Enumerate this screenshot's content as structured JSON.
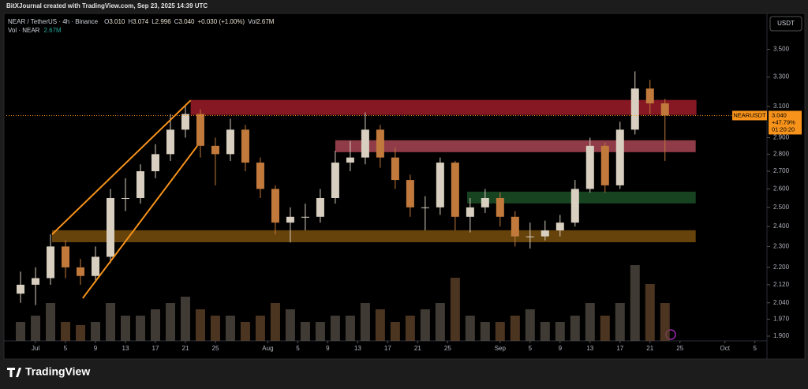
{
  "header": {
    "caption": "BitXJournal created with TradingView.com, Sep 23, 2025 14:39 UTC",
    "symbol": "NEAR / TetherUS · 4h · Binance",
    "ohlc": [
      {
        "prefix": "O",
        "value": "3.010"
      },
      {
        "prefix": "H",
        "value": "3.074"
      },
      {
        "prefix": "L",
        "value": "2.996"
      },
      {
        "prefix": "C",
        "value": "3.040"
      }
    ],
    "change": "+0.030 (+1.00%)",
    "volume_prefix": "Vol",
    "volume": "2.67M",
    "volume_study": "Vol · NEAR",
    "volume_study_value": "2.67M"
  },
  "footer": {
    "brand": "TradingView"
  },
  "chart_data": {
    "type": "candlestick",
    "log_scale": true,
    "grid": false,
    "currency": "USDT",
    "up_color": "#d8cfc0",
    "down_color": "#c27a3c",
    "volume_color": "#6b4a2e",
    "xlim": [
      -3.9,
      97.4
    ],
    "ylim": [
      1.881,
      3.76
    ],
    "volume_lim": [
      0,
      15
    ],
    "xticks": [
      {
        "value": 0,
        "label": "Jul"
      },
      {
        "value": 4,
        "label": "5"
      },
      {
        "value": 8,
        "label": "9"
      },
      {
        "value": 12,
        "label": "13"
      },
      {
        "value": 16,
        "label": "17"
      },
      {
        "value": 20,
        "label": "21"
      },
      {
        "value": 24,
        "label": "25"
      },
      {
        "value": 31,
        "label": "Aug"
      },
      {
        "value": 35,
        "label": "5"
      },
      {
        "value": 39,
        "label": "9"
      },
      {
        "value": 43,
        "label": "13"
      },
      {
        "value": 47,
        "label": "17"
      },
      {
        "value": 51,
        "label": "21"
      },
      {
        "value": 55,
        "label": "25"
      },
      {
        "value": 62,
        "label": "Sep"
      },
      {
        "value": 66,
        "label": "5"
      },
      {
        "value": 70,
        "label": "9"
      },
      {
        "value": 74,
        "label": "13"
      },
      {
        "value": 78,
        "label": "17"
      },
      {
        "value": 82,
        "label": "21"
      },
      {
        "value": 86,
        "label": "25"
      },
      {
        "value": 92,
        "label": "Oct"
      },
      {
        "value": 96,
        "label": "5"
      }
    ],
    "yticks": [
      {
        "value": 3.5,
        "label": "3.500"
      },
      {
        "value": 3.3,
        "label": "3.300"
      },
      {
        "value": 3.1,
        "label": "3.100"
      },
      {
        "value": 2.9,
        "label": "2.900"
      },
      {
        "value": 2.8,
        "label": "2.800"
      },
      {
        "value": 2.7,
        "label": "2.700"
      },
      {
        "value": 2.6,
        "label": "2.600"
      },
      {
        "value": 2.5,
        "label": "2.500"
      },
      {
        "value": 2.4,
        "label": "2.400"
      },
      {
        "value": 2.3,
        "label": "2.300"
      },
      {
        "value": 2.2,
        "label": "2.200"
      },
      {
        "value": 2.12,
        "label": "2.120"
      },
      {
        "value": 2.04,
        "label": "2.040"
      },
      {
        "value": 1.97,
        "label": "1.970"
      },
      {
        "value": 1.9,
        "label": "1.900"
      }
    ],
    "x": [
      -2,
      0,
      2,
      4,
      6,
      8,
      10,
      12,
      14,
      16,
      18,
      20,
      22,
      24,
      26,
      28,
      30,
      32,
      34,
      36,
      38,
      40,
      42,
      44,
      46,
      48,
      50,
      52,
      54,
      56,
      58,
      60,
      62,
      64,
      66,
      68,
      70,
      72,
      74,
      76,
      78,
      80,
      82,
      84
    ],
    "open": [
      2.08,
      2.12,
      2.15,
      2.3,
      2.2,
      2.16,
      2.25,
      2.55,
      2.55,
      2.7,
      2.8,
      2.95,
      3.05,
      2.85,
      2.8,
      2.95,
      2.75,
      2.6,
      2.42,
      2.45,
      2.45,
      2.55,
      2.75,
      2.78,
      2.95,
      2.78,
      2.65,
      2.5,
      2.5,
      2.75,
      2.45,
      2.5,
      2.55,
      2.45,
      2.35,
      2.35,
      2.38,
      2.42,
      2.6,
      2.85,
      2.62,
      2.95,
      3.22,
      3.12
    ],
    "high": [
      2.18,
      2.2,
      2.36,
      2.33,
      2.24,
      2.3,
      2.6,
      2.66,
      2.74,
      2.86,
      3.05,
      3.1,
      3.08,
      2.9,
      3.02,
      2.98,
      2.78,
      2.62,
      2.5,
      2.52,
      2.6,
      2.82,
      2.88,
      3.06,
      2.98,
      2.84,
      2.68,
      2.56,
      2.78,
      2.76,
      2.55,
      2.6,
      2.58,
      2.48,
      2.42,
      2.43,
      2.46,
      2.65,
      2.9,
      2.87,
      3.0,
      3.34,
      3.28,
      3.15
    ],
    "low": [
      2.04,
      2.03,
      2.12,
      2.15,
      2.12,
      2.13,
      2.22,
      2.48,
      2.52,
      2.66,
      2.76,
      2.9,
      2.78,
      2.62,
      2.76,
      2.7,
      2.55,
      2.36,
      2.32,
      2.38,
      2.42,
      2.52,
      2.7,
      2.74,
      2.72,
      2.6,
      2.45,
      2.38,
      2.46,
      2.38,
      2.37,
      2.47,
      2.4,
      2.3,
      2.29,
      2.33,
      2.35,
      2.4,
      2.58,
      2.58,
      2.6,
      2.92,
      3.05,
      2.76
    ],
    "close": [
      2.12,
      2.15,
      2.3,
      2.2,
      2.16,
      2.25,
      2.55,
      2.55,
      2.7,
      2.8,
      2.95,
      3.05,
      2.85,
      2.8,
      2.95,
      2.75,
      2.6,
      2.42,
      2.45,
      2.45,
      2.55,
      2.75,
      2.78,
      2.95,
      2.78,
      2.65,
      2.5,
      2.5,
      2.75,
      2.45,
      2.5,
      2.55,
      2.45,
      2.35,
      2.35,
      2.38,
      2.42,
      2.6,
      2.85,
      2.62,
      2.95,
      3.22,
      3.12,
      3.04
    ],
    "volume": [
      3,
      4,
      6,
      3,
      2.5,
      3,
      6,
      4,
      4,
      5,
      6,
      7,
      5,
      4,
      4,
      3,
      4,
      6,
      5,
      3,
      3,
      4,
      4,
      6,
      5,
      3,
      4,
      5,
      6,
      10,
      4,
      3,
      3,
      4,
      5,
      3,
      3,
      4,
      6,
      4,
      6,
      12,
      9,
      6
    ],
    "zones": [
      {
        "x": [
          20.7,
          88.2
        ],
        "y": [
          3.044,
          3.143
        ],
        "color": "#b2202f"
      },
      {
        "x": [
          40.0,
          88.1
        ],
        "y": [
          2.812,
          2.884
        ],
        "color": "#c05060"
      },
      {
        "x": [
          57.6,
          88.1
        ],
        "y": [
          2.521,
          2.585
        ],
        "color": "#1f5a2c"
      },
      {
        "x": [
          2.2,
          88.1
        ],
        "y": [
          2.321,
          2.381
        ],
        "color": "#8a5a10"
      }
    ],
    "trend_lines": [
      {
        "x": [
          2.2,
          20.7
        ],
        "y": [
          2.36,
          3.14
        ],
        "color": "#f7931a"
      },
      {
        "x": [
          6.3,
          21.6
        ],
        "y": [
          2.06,
          2.85
        ],
        "color": "#f7931a"
      }
    ],
    "last_price": {
      "value": 3.04,
      "label": "3.040",
      "symbol": "NEARUSDT",
      "change": "+47.79%",
      "countdown": "01:20:20",
      "color": "#f7931a"
    }
  }
}
